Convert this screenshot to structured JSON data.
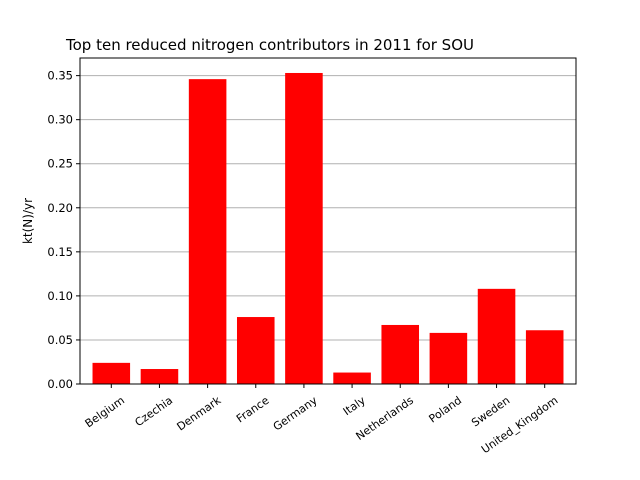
{
  "chart_data": {
    "type": "bar",
    "title": "Top ten reduced nitrogen contributors in 2011 for  SOU",
    "xlabel": "",
    "ylabel": "kt(N)/yr",
    "categories": [
      "Belgium",
      "Czechia",
      "Denmark",
      "France",
      "Germany",
      "Italy",
      "Netherlands",
      "Poland",
      "Sweden",
      "United_Kingdom"
    ],
    "values": [
      0.024,
      0.017,
      0.346,
      0.076,
      0.353,
      0.013,
      0.067,
      0.058,
      0.108,
      0.061
    ],
    "ylim": [
      0,
      0.37
    ],
    "yticks": [
      "0.00",
      "0.05",
      "0.10",
      "0.15",
      "0.20",
      "0.25",
      "0.30",
      "0.35"
    ],
    "grid": "horizontal",
    "bar_color": "#ff0000",
    "grid_color": "#b0b0b0"
  }
}
